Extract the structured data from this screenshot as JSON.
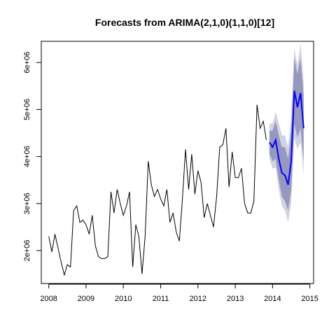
{
  "chart_data": {
    "type": "line",
    "title": "Forecasts from ARIMA(2,1,0)(1,1,0)[12]",
    "xlabel": "",
    "ylabel": "",
    "xlim": [
      2007.8,
      2015.1
    ],
    "ylim": [
      1300000,
      6450000
    ],
    "x_ticks": [
      2008,
      2009,
      2010,
      2011,
      2012,
      2013,
      2014,
      2015
    ],
    "x_tick_labels": [
      "2008",
      "2009",
      "2010",
      "2011",
      "2012",
      "2013",
      "2014",
      "2015"
    ],
    "y_ticks": [
      2000000,
      3000000,
      4000000,
      5000000,
      6000000
    ],
    "y_tick_labels": [
      "2e+06",
      "3e+06",
      "4e+06",
      "5e+06",
      "6e+06"
    ],
    "grid": false,
    "legend": false,
    "colors": {
      "history": "#000000",
      "forecast": "#0000ff",
      "band_outer": "#d1d3e3",
      "band_inner": "#9698bf"
    },
    "series": [
      {
        "role": "history",
        "start": 2008.0,
        "frequency": 12,
        "values": [
          2300000,
          1970000,
          2350000,
          2050000,
          1750000,
          1480000,
          1700000,
          1650000,
          2850000,
          2950000,
          2600000,
          2650000,
          2550000,
          2350000,
          2750000,
          2100000,
          1870000,
          1830000,
          1830000,
          1870000,
          3250000,
          2800000,
          3300000,
          3000000,
          2750000,
          2950000,
          3250000,
          1650000,
          2550000,
          2300000,
          1500000,
          2300000,
          3900000,
          3400000,
          3150000,
          3300000,
          3100000,
          2950000,
          3300000,
          2600000,
          2800000,
          2400000,
          2200000,
          3100000,
          4150000,
          3300000,
          4050000,
          3200000,
          3700000,
          3450000,
          2700000,
          3000000,
          2750000,
          2500000,
          3150000,
          4200000,
          4250000,
          4600000,
          3350000,
          4100000,
          3550000,
          3550000,
          3750000,
          3000000,
          2800000,
          2800000,
          3050000,
          5100000,
          4600000,
          4750000,
          4350000
        ]
      },
      {
        "role": "forecast",
        "start": 2013.9167,
        "frequency": 12,
        "values": [
          4300000,
          4200000,
          4350000,
          3950000,
          3650000,
          3600000,
          3400000,
          3900000,
          5400000,
          5050000,
          5350000,
          4600000
        ],
        "lo80": [
          4050000,
          3900000,
          3950000,
          3500000,
          3150000,
          3050000,
          2850000,
          3300000,
          4700000,
          4400000,
          4600000,
          3900000
        ],
        "hi80": [
          4550000,
          4550000,
          4750000,
          4450000,
          4200000,
          4200000,
          3950000,
          4550000,
          6100000,
          5750000,
          6100000,
          5300000
        ],
        "lo95": [
          3950000,
          3750000,
          3750000,
          3300000,
          2950000,
          2850000,
          2600000,
          3000000,
          4400000,
          4150000,
          4300000,
          3600000
        ],
        "hi95": [
          4700000,
          4700000,
          4950000,
          4700000,
          4450000,
          4450000,
          4200000,
          4850000,
          6300000,
          5950000,
          6400000,
          5600000
        ]
      }
    ]
  }
}
